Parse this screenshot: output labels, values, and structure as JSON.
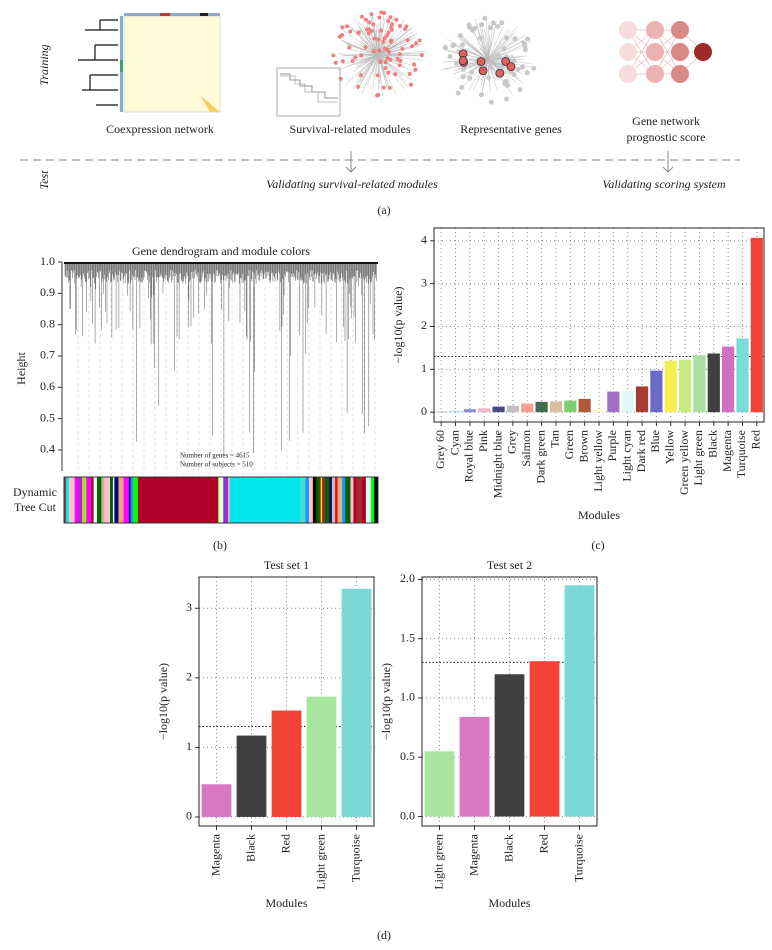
{
  "diagram": {
    "training_label": "Training",
    "test_label": "Test",
    "steps": [
      "Coexpression network",
      "Survival-related modules",
      "Representative genes",
      [
        "Gene network",
        "prognostic score"
      ]
    ],
    "validations": [
      "Validating survival-related modules",
      "Validating scoring system"
    ]
  },
  "panel_labels": [
    "(a)",
    "(b)",
    "(c)",
    "(d)"
  ],
  "chart_data": [
    {
      "type": "dendrogram",
      "title": "Gene dendrogram and module colors",
      "ylabel": "Height",
      "ylim": [
        0.32,
        1.0
      ],
      "yticks": [
        0.4,
        0.5,
        0.6,
        0.7,
        0.8,
        0.9,
        {
          "value": 1,
          "label": "1.0"
        }
      ],
      "annotations": [
        "Number of genes = 4615",
        "Number of subjects = 510"
      ],
      "color_bar_label": [
        "Dynamic",
        "Tree Cut"
      ]
    },
    {
      "type": "bar",
      "xlabel": "Modules",
      "ylabel": "−log10(p value)",
      "categories": [
        "Grey 60",
        "Cyan",
        "Royal blue",
        "Pink",
        "Midnight blue",
        "Grey",
        "Salmon",
        "Dark green",
        "Tan",
        "Green",
        "Brown",
        "Light yellow",
        "Purple",
        "Light cyan",
        "Dark red",
        "Blue",
        "Yellow",
        "Green yellow",
        "Light green",
        "Black",
        "Magenta",
        "Turquoise",
        "Red"
      ],
      "values": [
        0.01,
        0.03,
        0.07,
        0.09,
        0.13,
        0.15,
        0.2,
        0.24,
        0.25,
        0.27,
        0.31,
        0.05,
        0.48,
        0.5,
        0.6,
        0.97,
        1.2,
        1.22,
        1.33,
        1.37,
        1.53,
        1.72,
        4.07
      ],
      "colors": [
        "#a0a0a0",
        "#a6e3ee",
        "#8a8fd6",
        "#f5b8c8",
        "#4a4a80",
        "#c0c0c0",
        "#f5a090",
        "#3f6e4f",
        "#d8bfa0",
        "#7fce70",
        "#b05a3a",
        "#fffbd0",
        "#a070c8",
        "#e0f6f8",
        "#a83a34",
        "#6a6ac8",
        "#f5f050",
        "#c8ee80",
        "#a8e0a0",
        "#404040",
        "#d070c0",
        "#78dcd8",
        "#f44336"
      ],
      "ylim": [
        -0.23,
        4.3
      ],
      "yticks": [
        0,
        1,
        2,
        3,
        4
      ],
      "threshold": 1.3,
      "grid": true
    },
    {
      "type": "bar",
      "title": "Test set 1",
      "xlabel": "Modules",
      "ylabel": "−log10(p value)",
      "categories": [
        "Magenta",
        "Black",
        "Red",
        "Light green",
        "Turquoise"
      ],
      "values": [
        0.47,
        1.17,
        1.53,
        1.73,
        3.28
      ],
      "colors": [
        "#d977c4",
        "#404040",
        "#f44336",
        "#a8e6a0",
        "#7ad9d4"
      ],
      "ylim": [
        -0.13,
        3.45
      ],
      "yticks": [
        0,
        1,
        2,
        3
      ],
      "threshold": 1.3,
      "grid": true
    },
    {
      "type": "bar",
      "title": "Test set 2",
      "xlabel": "Modules",
      "ylabel": "−log10(p value)",
      "categories": [
        "Light green",
        "Magenta",
        "Black",
        "Red",
        "Turquoise"
      ],
      "values": [
        0.55,
        0.84,
        1.2,
        1.31,
        1.95
      ],
      "colors": [
        "#a8e6a0",
        "#d977c4",
        "#404040",
        "#f44336",
        "#7ad9d4"
      ],
      "ylim": [
        -0.08,
        2.02
      ],
      "yticks": [
        {
          "value": 0,
          "label": "0.0"
        },
        0.5,
        {
          "value": 1,
          "label": "1.0"
        },
        1.5,
        {
          "value": 2,
          "label": "2.0"
        }
      ],
      "threshold": 1.3,
      "grid": true
    }
  ]
}
